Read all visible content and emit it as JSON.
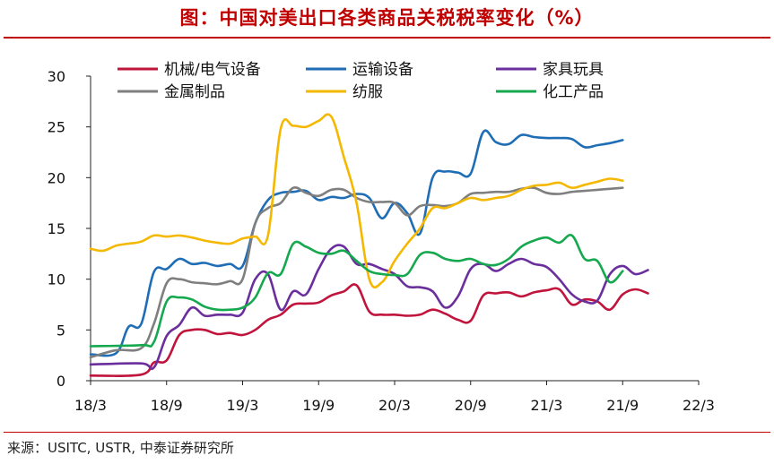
{
  "title": "图：中国对美出口各类商品关税税率变化（%）",
  "source": "来源：USITC, USTR, 中泰证券研究所",
  "chart_data": {
    "type": "line",
    "title": "中国对美出口各类商品关税税率变化（%）",
    "xlabel": "",
    "ylabel": "",
    "ylim": [
      0,
      30
    ],
    "yticks": [
      0,
      5,
      10,
      15,
      20,
      25,
      30
    ],
    "xlim": [
      0,
      48
    ],
    "xticks": [
      {
        "t": 0,
        "label": "18/3"
      },
      {
        "t": 6,
        "label": "18/9"
      },
      {
        "t": 12,
        "label": "19/3"
      },
      {
        "t": 18,
        "label": "19/9"
      },
      {
        "t": 24,
        "label": "20/3"
      },
      {
        "t": 30,
        "label": "20/9"
      },
      {
        "t": 36,
        "label": "21/3"
      },
      {
        "t": 42,
        "label": "21/9"
      },
      {
        "t": 48,
        "label": "22/3"
      }
    ],
    "legend_position": "top",
    "series": [
      {
        "name": "机械/电气设备",
        "color": "#c0143c",
        "points": [
          [
            0,
            0.5
          ],
          [
            4,
            0.6
          ],
          [
            5,
            1.8
          ],
          [
            6,
            2.0
          ],
          [
            7,
            4.5
          ],
          [
            8,
            5.0
          ],
          [
            9,
            5.0
          ],
          [
            10,
            4.6
          ],
          [
            11,
            4.7
          ],
          [
            12,
            4.5
          ],
          [
            13,
            5.0
          ],
          [
            14,
            6.0
          ],
          [
            15,
            6.5
          ],
          [
            16,
            7.5
          ],
          [
            17,
            7.6
          ],
          [
            18,
            7.7
          ],
          [
            19,
            8.4
          ],
          [
            20,
            8.8
          ],
          [
            21,
            9.4
          ],
          [
            22,
            6.8
          ],
          [
            23,
            6.5
          ],
          [
            24,
            6.5
          ],
          [
            25,
            6.4
          ],
          [
            26,
            6.5
          ],
          [
            27,
            7.0
          ],
          [
            28,
            6.6
          ],
          [
            29,
            6.0
          ],
          [
            30,
            5.9
          ],
          [
            31,
            8.4
          ],
          [
            32,
            8.6
          ],
          [
            33,
            8.7
          ],
          [
            34,
            8.3
          ],
          [
            35,
            8.7
          ],
          [
            36,
            8.9
          ],
          [
            37,
            9.0
          ],
          [
            38,
            7.5
          ],
          [
            39,
            8.0
          ],
          [
            40,
            7.8
          ],
          [
            41,
            7.0
          ],
          [
            42,
            8.5
          ],
          [
            43,
            9.0
          ],
          [
            44,
            8.6
          ]
        ]
      },
      {
        "name": "运输设备",
        "color": "#1f6db5",
        "points": [
          [
            0,
            2.6
          ],
          [
            2,
            2.7
          ],
          [
            3,
            5.3
          ],
          [
            4,
            5.6
          ],
          [
            5,
            10.7
          ],
          [
            6,
            11.0
          ],
          [
            7,
            12.0
          ],
          [
            8,
            11.5
          ],
          [
            9,
            11.6
          ],
          [
            10,
            11.3
          ],
          [
            11,
            11.5
          ],
          [
            12,
            11.3
          ],
          [
            13,
            15.5
          ],
          [
            14,
            17.8
          ],
          [
            15,
            18.5
          ],
          [
            16,
            18.6
          ],
          [
            17,
            18.7
          ],
          [
            18,
            17.8
          ],
          [
            19,
            18.1
          ],
          [
            20,
            18.0
          ],
          [
            21,
            18.4
          ],
          [
            22,
            18.0
          ],
          [
            23,
            16.0
          ],
          [
            24,
            17.5
          ],
          [
            25,
            16.5
          ],
          [
            26,
            14.5
          ],
          [
            27,
            20.0
          ],
          [
            28,
            20.6
          ],
          [
            29,
            20.5
          ],
          [
            30,
            20.4
          ],
          [
            31,
            24.5
          ],
          [
            32,
            23.5
          ],
          [
            33,
            23.3
          ],
          [
            34,
            24.2
          ],
          [
            35,
            24.0
          ],
          [
            36,
            23.9
          ],
          [
            37,
            23.9
          ],
          [
            38,
            23.8
          ],
          [
            39,
            23.0
          ],
          [
            40,
            23.2
          ],
          [
            41,
            23.4
          ],
          [
            42,
            23.7
          ]
        ]
      },
      {
        "name": "家具玩具",
        "color": "#6a2f9c",
        "points": [
          [
            0,
            1.6
          ],
          [
            4,
            1.7
          ],
          [
            5,
            1.3
          ],
          [
            6,
            4.4
          ],
          [
            7,
            5.5
          ],
          [
            8,
            7.2
          ],
          [
            9,
            6.4
          ],
          [
            10,
            6.5
          ],
          [
            11,
            6.5
          ],
          [
            12,
            6.7
          ],
          [
            13,
            10.0
          ],
          [
            14,
            10.5
          ],
          [
            15,
            7.0
          ],
          [
            16,
            8.8
          ],
          [
            17,
            8.5
          ],
          [
            18,
            11.0
          ],
          [
            19,
            13.0
          ],
          [
            20,
            13.2
          ],
          [
            21,
            11.5
          ],
          [
            22,
            11.5
          ],
          [
            23,
            11.0
          ],
          [
            24,
            10.5
          ],
          [
            25,
            9.3
          ],
          [
            26,
            9.2
          ],
          [
            27,
            8.8
          ],
          [
            28,
            7.2
          ],
          [
            29,
            8.3
          ],
          [
            30,
            11.0
          ],
          [
            31,
            11.5
          ],
          [
            32,
            10.8
          ],
          [
            33,
            11.5
          ],
          [
            34,
            12.0
          ],
          [
            35,
            11.5
          ],
          [
            36,
            11.2
          ],
          [
            37,
            10.0
          ],
          [
            38,
            8.5
          ],
          [
            39,
            7.8
          ],
          [
            40,
            7.9
          ],
          [
            41,
            10.5
          ],
          [
            42,
            11.3
          ],
          [
            43,
            10.5
          ],
          [
            44,
            10.9
          ]
        ]
      },
      {
        "name": "金属制品",
        "color": "#7f7f7f",
        "points": [
          [
            0,
            2.3
          ],
          [
            2,
            3.0
          ],
          [
            4,
            3.2
          ],
          [
            5,
            5.6
          ],
          [
            6,
            9.6
          ],
          [
            7,
            10.0
          ],
          [
            8,
            9.7
          ],
          [
            9,
            9.6
          ],
          [
            10,
            9.5
          ],
          [
            11,
            9.8
          ],
          [
            12,
            10.0
          ],
          [
            13,
            15.5
          ],
          [
            14,
            17.0
          ],
          [
            15,
            17.5
          ],
          [
            16,
            19.0
          ],
          [
            17,
            18.5
          ],
          [
            18,
            18.2
          ],
          [
            19,
            18.8
          ],
          [
            20,
            18.8
          ],
          [
            21,
            18.0
          ],
          [
            22,
            17.6
          ],
          [
            23,
            17.6
          ],
          [
            24,
            17.5
          ],
          [
            25,
            16.3
          ],
          [
            26,
            17.2
          ],
          [
            27,
            17.3
          ],
          [
            28,
            17.2
          ],
          [
            29,
            17.5
          ],
          [
            30,
            18.4
          ],
          [
            31,
            18.5
          ],
          [
            32,
            18.6
          ],
          [
            33,
            18.6
          ],
          [
            34,
            18.9
          ],
          [
            35,
            19.0
          ],
          [
            36,
            18.5
          ],
          [
            37,
            18.4
          ],
          [
            38,
            18.6
          ],
          [
            39,
            18.7
          ],
          [
            40,
            18.8
          ],
          [
            41,
            18.9
          ],
          [
            42,
            19.0
          ]
        ]
      },
      {
        "name": "纺服",
        "color": "#f5b800",
        "points": [
          [
            0,
            13.0
          ],
          [
            1,
            12.8
          ],
          [
            2,
            13.3
          ],
          [
            3,
            13.5
          ],
          [
            4,
            13.7
          ],
          [
            5,
            14.3
          ],
          [
            6,
            14.2
          ],
          [
            7,
            14.3
          ],
          [
            8,
            14.1
          ],
          [
            9,
            13.8
          ],
          [
            10,
            13.6
          ],
          [
            11,
            13.5
          ],
          [
            12,
            14.0
          ],
          [
            13,
            14.2
          ],
          [
            14,
            14.3
          ],
          [
            15,
            24.8
          ],
          [
            16,
            25.1
          ],
          [
            17,
            25.0
          ],
          [
            18,
            25.6
          ],
          [
            19,
            26.0
          ],
          [
            20,
            22.0
          ],
          [
            21,
            17.5
          ],
          [
            22,
            10.0
          ],
          [
            23,
            9.7
          ],
          [
            24,
            11.8
          ],
          [
            25,
            13.5
          ],
          [
            26,
            15.0
          ],
          [
            27,
            17.0
          ],
          [
            28,
            17.0
          ],
          [
            29,
            17.5
          ],
          [
            30,
            18.0
          ],
          [
            31,
            17.8
          ],
          [
            32,
            18.0
          ],
          [
            33,
            18.2
          ],
          [
            34,
            18.8
          ],
          [
            35,
            19.2
          ],
          [
            36,
            19.3
          ],
          [
            37,
            19.5
          ],
          [
            38,
            19.0
          ],
          [
            39,
            19.3
          ],
          [
            40,
            19.6
          ],
          [
            41,
            19.9
          ],
          [
            42,
            19.7
          ]
        ]
      },
      {
        "name": "化工产品",
        "color": "#15a84f",
        "points": [
          [
            0,
            3.4
          ],
          [
            4,
            3.5
          ],
          [
            5,
            3.8
          ],
          [
            6,
            7.8
          ],
          [
            7,
            8.2
          ],
          [
            8,
            8.0
          ],
          [
            9,
            7.3
          ],
          [
            10,
            7.0
          ],
          [
            11,
            7.0
          ],
          [
            12,
            7.2
          ],
          [
            13,
            8.2
          ],
          [
            14,
            10.6
          ],
          [
            15,
            10.5
          ],
          [
            16,
            13.5
          ],
          [
            17,
            13.2
          ],
          [
            18,
            12.6
          ],
          [
            19,
            12.5
          ],
          [
            20,
            12.8
          ],
          [
            21,
            11.8
          ],
          [
            22,
            10.8
          ],
          [
            23,
            10.5
          ],
          [
            24,
            10.4
          ],
          [
            25,
            10.5
          ],
          [
            26,
            12.4
          ],
          [
            27,
            12.6
          ],
          [
            28,
            12.0
          ],
          [
            29,
            11.8
          ],
          [
            30,
            12.0
          ],
          [
            31,
            11.5
          ],
          [
            32,
            11.4
          ],
          [
            33,
            12.0
          ],
          [
            34,
            13.2
          ],
          [
            35,
            13.8
          ],
          [
            36,
            14.1
          ],
          [
            37,
            13.6
          ],
          [
            38,
            14.3
          ],
          [
            39,
            12.0
          ],
          [
            40,
            11.8
          ],
          [
            41,
            9.7
          ],
          [
            42,
            10.8
          ]
        ]
      }
    ]
  }
}
